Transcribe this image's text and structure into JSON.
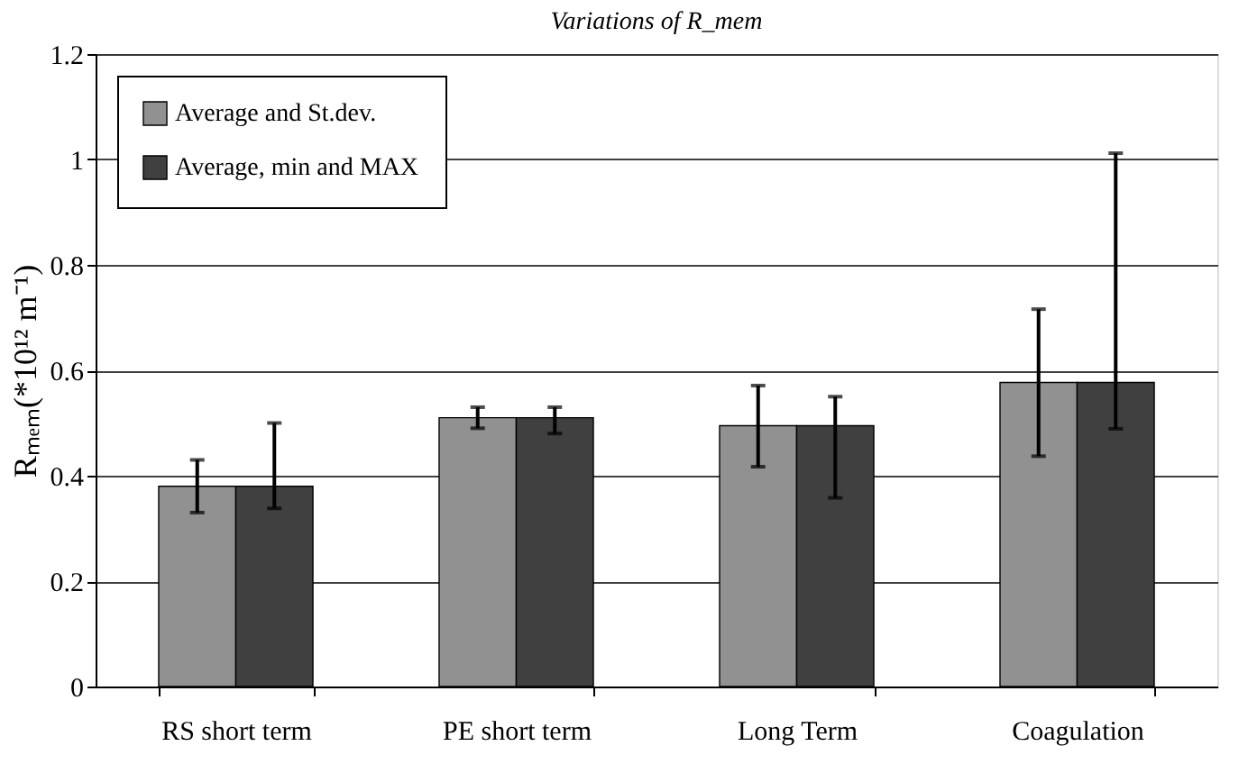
{
  "chart_data": {
    "type": "bar",
    "title": "Variations of R_mem",
    "ylabel": "Rₘₑₘ(*10¹² m⁻¹)",
    "categories": [
      "RS short term",
      "PE short term",
      "Long Term",
      "Coagulation"
    ],
    "series": [
      {
        "name": "Average and St.dev.",
        "color": "#919191",
        "values": [
          0.38,
          0.51,
          0.495,
          0.577
        ],
        "errors": [
          [
            0.33,
            0.43
          ],
          [
            0.49,
            0.53
          ],
          [
            0.417,
            0.571
          ],
          [
            0.437,
            0.716
          ]
        ]
      },
      {
        "name": "Average, min and MAX",
        "color": "#404040",
        "values": [
          0.38,
          0.51,
          0.495,
          0.577
        ],
        "errors": [
          [
            0.338,
            0.5
          ],
          [
            0.48,
            0.53
          ],
          [
            0.358,
            0.55
          ],
          [
            0.489,
            1.012
          ]
        ]
      }
    ],
    "ylim": [
      0,
      1.2
    ],
    "yticks": [
      0,
      0.2,
      0.4,
      0.6,
      0.8,
      1,
      1.2
    ],
    "grid": "y",
    "legend": "top left"
  }
}
